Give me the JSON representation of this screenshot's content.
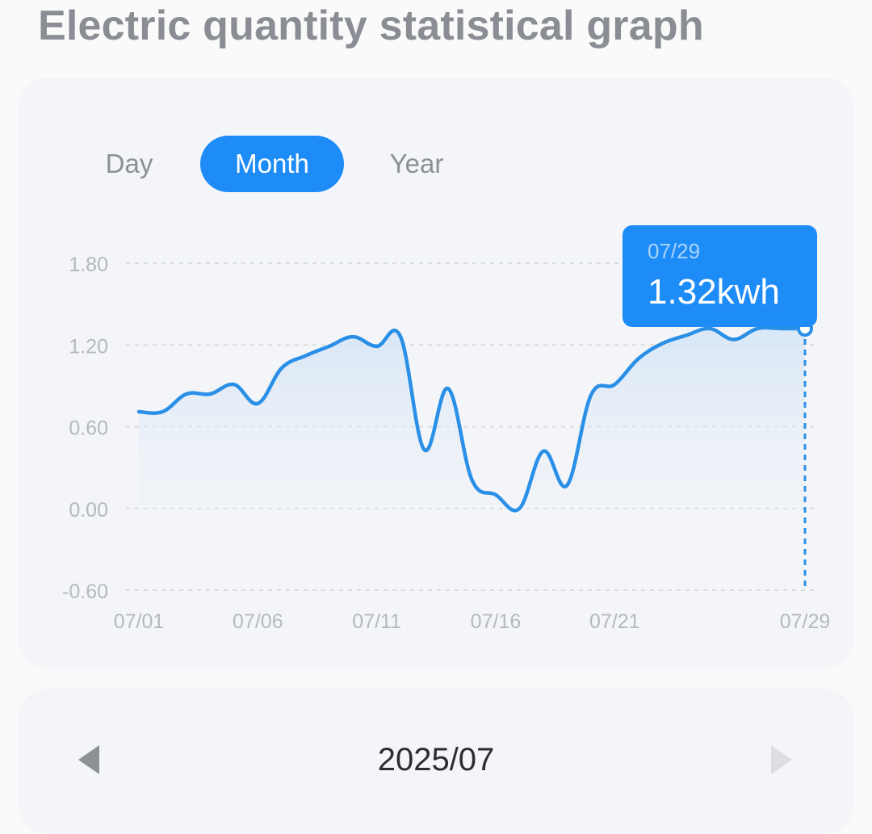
{
  "page": {
    "title": "Electric quantity statistical graph"
  },
  "tabs": [
    {
      "label": "Day",
      "selected": false
    },
    {
      "label": "Month",
      "selected": true
    },
    {
      "label": "Year",
      "selected": false
    }
  ],
  "colors": {
    "accent": "#1e8cf7",
    "line": "#2a8fe6",
    "grid": "#d9dcdf",
    "axis_text": "#b5b8bc"
  },
  "tooltip": {
    "date": "07/29",
    "value": "1.32kwh"
  },
  "period": {
    "label": "2025/07",
    "prev_icon": "triangle-left-icon",
    "next_icon": "triangle-right-icon"
  },
  "chart_data": {
    "type": "area",
    "x": [
      "07/01",
      "07/02",
      "07/03",
      "07/04",
      "07/05",
      "07/06",
      "07/07",
      "07/08",
      "07/09",
      "07/10",
      "07/11",
      "07/12",
      "07/13",
      "07/14",
      "07/15",
      "07/16",
      "07/17",
      "07/18",
      "07/19",
      "07/20",
      "07/21",
      "07/22",
      "07/23",
      "07/24",
      "07/25",
      "07/26",
      "07/27",
      "07/28",
      "07/29"
    ],
    "x_ticks": [
      "07/01",
      "07/06",
      "07/11",
      "07/16",
      "07/21",
      "07/29"
    ],
    "y_ticks": [
      "1.80",
      "1.20",
      "0.60",
      "0.00",
      "-0.60"
    ],
    "values": [
      0.71,
      0.71,
      0.84,
      0.84,
      0.91,
      0.77,
      1.03,
      1.12,
      1.19,
      1.26,
      1.19,
      1.26,
      0.43,
      0.88,
      0.21,
      0.1,
      0.0,
      0.42,
      0.17,
      0.83,
      0.91,
      1.1,
      1.21,
      1.27,
      1.32,
      1.24,
      1.32,
      1.32,
      1.32
    ],
    "ylim": [
      -0.6,
      1.8
    ],
    "grid": true,
    "highlight_index": 28,
    "unit": "kwh"
  }
}
